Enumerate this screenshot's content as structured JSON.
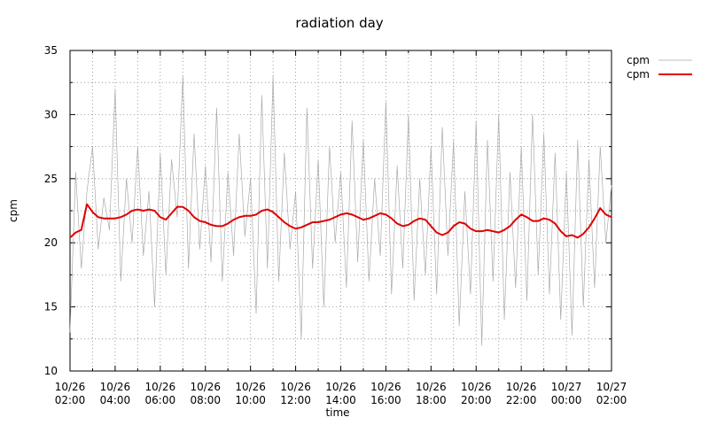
{
  "chart_data": {
    "type": "line",
    "title": "radiation day",
    "xlabel": "time",
    "ylabel": "cpm",
    "x": [
      "10/26 02:00",
      "10/26 02:15",
      "10/26 02:30",
      "10/26 02:45",
      "10/26 03:00",
      "10/26 03:15",
      "10/26 03:30",
      "10/26 03:45",
      "10/26 04:00",
      "10/26 04:15",
      "10/26 04:30",
      "10/26 04:45",
      "10/26 05:00",
      "10/26 05:15",
      "10/26 05:30",
      "10/26 05:45",
      "10/26 06:00",
      "10/26 06:15",
      "10/26 06:30",
      "10/26 06:45",
      "10/26 07:00",
      "10/26 07:15",
      "10/26 07:30",
      "10/26 07:45",
      "10/26 08:00",
      "10/26 08:15",
      "10/26 08:30",
      "10/26 08:45",
      "10/26 09:00",
      "10/26 09:15",
      "10/26 09:30",
      "10/26 09:45",
      "10/26 10:00",
      "10/26 10:15",
      "10/26 10:30",
      "10/26 10:45",
      "10/26 11:00",
      "10/26 11:15",
      "10/26 11:30",
      "10/26 11:45",
      "10/26 12:00",
      "10/26 12:15",
      "10/26 12:30",
      "10/26 12:45",
      "10/26 13:00",
      "10/26 13:15",
      "10/26 13:30",
      "10/26 13:45",
      "10/26 14:00",
      "10/26 14:15",
      "10/26 14:30",
      "10/26 14:45",
      "10/26 15:00",
      "10/26 15:15",
      "10/26 15:30",
      "10/26 15:45",
      "10/26 16:00",
      "10/26 16:15",
      "10/26 16:30",
      "10/26 16:45",
      "10/26 17:00",
      "10/26 17:15",
      "10/26 17:30",
      "10/26 17:45",
      "10/26 18:00",
      "10/26 18:15",
      "10/26 18:30",
      "10/26 18:45",
      "10/26 19:00",
      "10/26 19:15",
      "10/26 19:30",
      "10/26 19:45",
      "10/26 20:00",
      "10/26 20:15",
      "10/26 20:30",
      "10/26 20:45",
      "10/26 21:00",
      "10/26 21:15",
      "10/26 21:30",
      "10/26 21:45",
      "10/26 22:00",
      "10/26 22:15",
      "10/26 22:30",
      "10/26 22:45",
      "10/26 23:00",
      "10/26 23:15",
      "10/26 23:30",
      "10/26 23:45",
      "10/27 00:00",
      "10/27 00:15",
      "10/27 00:30",
      "10/27 00:45",
      "10/27 01:00",
      "10/27 01:15",
      "10/27 01:30",
      "10/27 01:45",
      "10/27 02:00"
    ],
    "series": [
      {
        "name": "cpm",
        "color": "#aaaaaa",
        "width": 0.7,
        "values": [
          13.0,
          25.5,
          18.0,
          24.0,
          27.5,
          19.5,
          23.5,
          21.0,
          32.0,
          17.0,
          25.0,
          20.0,
          27.5,
          19.0,
          24.0,
          15.0,
          27.0,
          17.5,
          26.5,
          22.0,
          33.0,
          18.0,
          28.5,
          19.5,
          26.0,
          18.5,
          30.5,
          17.0,
          25.5,
          19.0,
          28.5,
          20.5,
          25.0,
          14.5,
          31.5,
          18.0,
          33.0,
          17.0,
          27.0,
          19.5,
          24.0,
          12.5,
          30.5,
          18.0,
          26.5,
          15.0,
          27.5,
          20.0,
          25.5,
          16.5,
          29.5,
          18.5,
          28.0,
          17.0,
          25.0,
          19.0,
          31.0,
          16.0,
          26.0,
          18.0,
          30.0,
          15.5,
          25.0,
          17.5,
          27.5,
          16.0,
          29.0,
          19.0,
          28.0,
          13.5,
          24.0,
          16.0,
          29.5,
          12.0,
          28.0,
          17.0,
          30.0,
          14.0,
          25.5,
          16.5,
          27.5,
          15.5,
          30.0,
          17.5,
          28.5,
          16.0,
          27.0,
          14.0,
          25.5,
          12.8,
          28.0,
          15.0,
          26.5,
          16.5,
          27.5,
          20.0,
          24.5
        ]
      },
      {
        "name": "cpm",
        "color": "#e00000",
        "width": 2,
        "values": [
          20.4,
          20.8,
          21.0,
          23.0,
          22.4,
          22.0,
          21.9,
          21.9,
          21.9,
          22.0,
          22.2,
          22.5,
          22.6,
          22.5,
          22.6,
          22.5,
          22.0,
          21.8,
          22.3,
          22.8,
          22.8,
          22.5,
          22.0,
          21.7,
          21.6,
          21.4,
          21.3,
          21.3,
          21.5,
          21.8,
          22.0,
          22.1,
          22.1,
          22.2,
          22.5,
          22.6,
          22.4,
          22.0,
          21.6,
          21.3,
          21.1,
          21.2,
          21.4,
          21.6,
          21.6,
          21.7,
          21.8,
          22.0,
          22.2,
          22.3,
          22.2,
          22.0,
          21.8,
          21.9,
          22.1,
          22.3,
          22.2,
          21.9,
          21.5,
          21.3,
          21.4,
          21.7,
          21.9,
          21.8,
          21.3,
          20.8,
          20.6,
          20.8,
          21.3,
          21.6,
          21.5,
          21.1,
          20.9,
          20.9,
          21.0,
          20.9,
          20.8,
          21.0,
          21.3,
          21.8,
          22.2,
          22.0,
          21.7,
          21.7,
          21.9,
          21.8,
          21.5,
          20.9,
          20.5,
          20.6,
          20.4,
          20.7,
          21.2,
          21.9,
          22.7,
          22.2,
          22.0
        ]
      }
    ],
    "xlim": [
      "10/26 02:00",
      "10/27 02:00"
    ],
    "xticks": [
      "10/26 02:00",
      "10/26 04:00",
      "10/26 06:00",
      "10/26 08:00",
      "10/26 10:00",
      "10/26 12:00",
      "10/26 14:00",
      "10/26 16:00",
      "10/26 18:00",
      "10/26 20:00",
      "10/26 22:00",
      "10/27 00:00",
      "10/27 02:00"
    ],
    "xminorticks": [
      "10/26 03:00",
      "10/26 05:00",
      "10/26 07:00",
      "10/26 09:00",
      "10/26 11:00",
      "10/26 13:00",
      "10/26 15:00",
      "10/26 17:00",
      "10/26 19:00",
      "10/26 21:00",
      "10/26 23:00",
      "10/27 01:00"
    ],
    "ylim": [
      10,
      35
    ],
    "yticks": [
      10,
      15,
      20,
      25,
      30,
      35
    ],
    "yminorticks": [
      12.5,
      17.5,
      22.5,
      27.5,
      32.5
    ],
    "grid": true,
    "legend": "outside right"
  }
}
